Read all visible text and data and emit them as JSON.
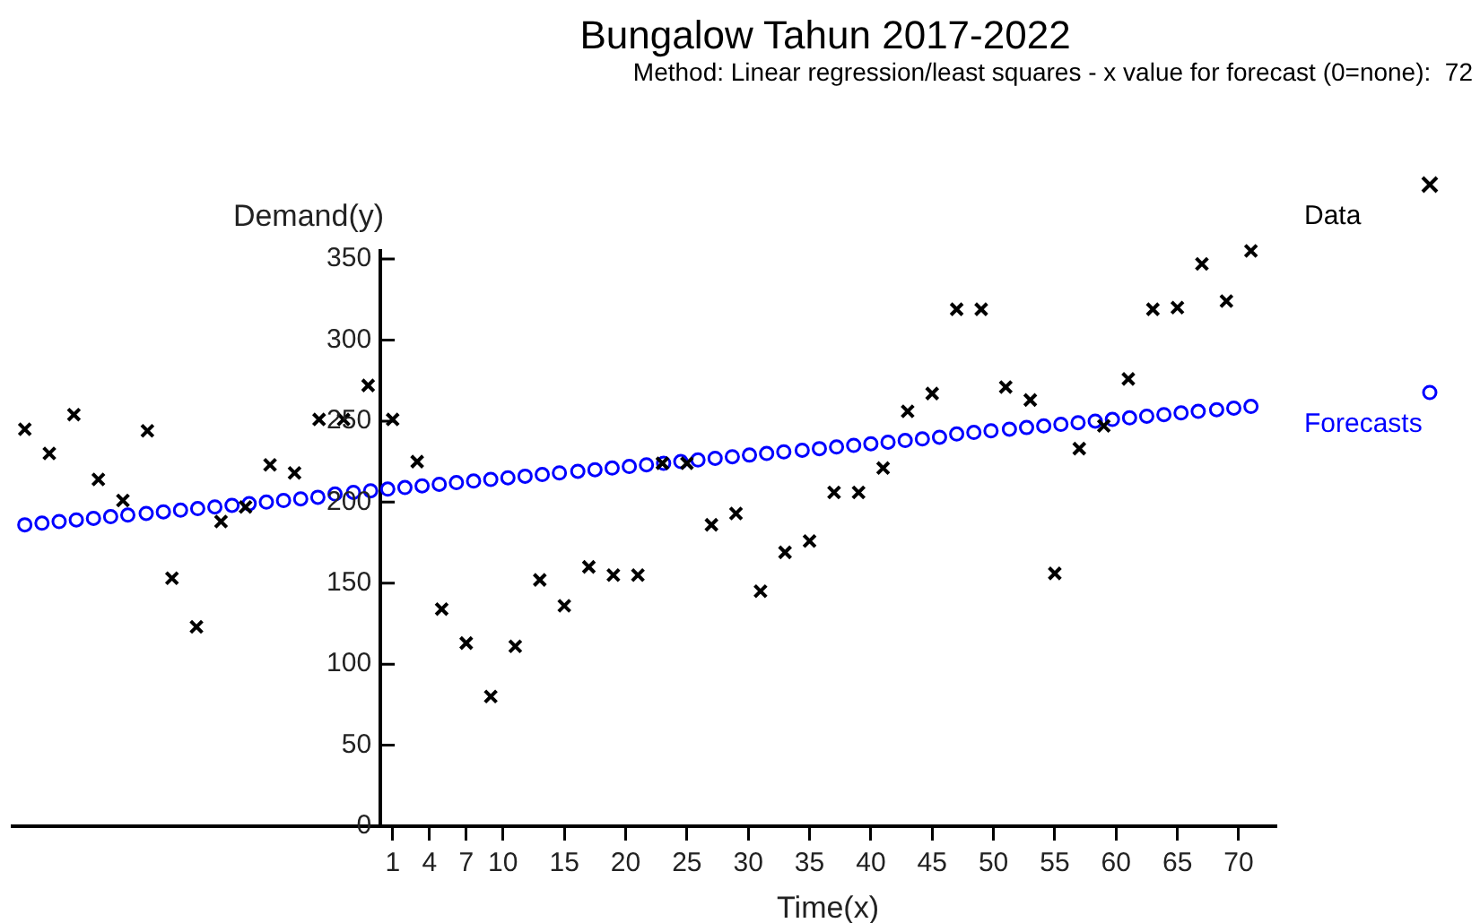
{
  "chart_data": {
    "type": "scatter",
    "title": "Bungalow Tahun 2017-2022",
    "subtitle": "Method: Linear regression/least squares - x value for forecast (0=none):  72",
    "xlabel": "Time(x)",
    "ylabel": "Demand(y)",
    "xlim": [
      -30,
      73
    ],
    "ylim": [
      0,
      355
    ],
    "xticks": [
      1,
      4,
      7,
      10,
      15,
      20,
      25,
      30,
      35,
      40,
      45,
      50,
      55,
      60,
      65,
      70
    ],
    "yticks": [
      0,
      50,
      100,
      150,
      200,
      250,
      300,
      350
    ],
    "grid": false,
    "legend": "top right",
    "series": [
      {
        "name": "Data",
        "color": "#000000",
        "marker": "cross",
        "x": [
          -29,
          -27,
          -25,
          -23,
          -21,
          -19,
          -17,
          -15,
          -13,
          -11,
          -9,
          -7,
          -5,
          -3,
          -1,
          1,
          3,
          5,
          7,
          9,
          11,
          13,
          15,
          17,
          19,
          21,
          23,
          25,
          27,
          29,
          31,
          33,
          35,
          37,
          39,
          41,
          43,
          45,
          47,
          49,
          51,
          53,
          55,
          57,
          59,
          61,
          63,
          65,
          67,
          69,
          71
        ],
        "values": [
          245,
          230,
          254,
          214,
          201,
          244,
          153,
          123,
          188,
          197,
          223,
          218,
          251,
          251,
          272,
          251,
          225,
          134,
          113,
          80,
          111,
          152,
          136,
          160,
          155,
          155,
          224,
          224,
          186,
          193,
          145,
          169,
          176,
          206,
          206,
          221,
          256,
          267,
          319,
          319,
          271,
          263,
          156,
          233,
          247,
          276,
          319,
          320,
          347,
          324,
          355
        ]
      },
      {
        "name": "Forecasts",
        "color": "#0000ff",
        "marker": "circle",
        "x": [
          -29.0,
          -27.6,
          -26.2,
          -24.8,
          -23.4,
          -22.0,
          -20.6,
          -19.1,
          -17.7,
          -16.3,
          -14.9,
          -13.5,
          -12.1,
          -10.7,
          -9.3,
          -7.9,
          -6.5,
          -5.1,
          -3.7,
          -2.2,
          -0.8,
          0.6,
          2.0,
          3.4,
          4.8,
          6.2,
          7.6,
          9.0,
          10.4,
          11.8,
          13.2,
          14.6,
          16.1,
          17.5,
          18.9,
          20.3,
          21.7,
          23.1,
          24.5,
          25.9,
          27.3,
          28.7,
          30.1,
          31.5,
          32.9,
          34.4,
          35.8,
          37.2,
          38.6,
          40.0,
          41.4,
          42.8,
          44.2,
          45.6,
          47.0,
          48.4,
          49.8,
          51.3,
          52.7,
          54.1,
          55.5,
          56.9,
          58.3,
          59.7,
          61.1,
          62.5,
          63.9,
          65.3,
          66.7,
          68.2,
          69.6,
          71.0
        ],
        "values": [
          186,
          187,
          188,
          189,
          190,
          191,
          192,
          193,
          194,
          195,
          196,
          197,
          198,
          199,
          200,
          201,
          202,
          203,
          205,
          206,
          207,
          208,
          209,
          210,
          211,
          212,
          213,
          214,
          215,
          216,
          217,
          218,
          219,
          220,
          221,
          222,
          223,
          224,
          225,
          226,
          227,
          228,
          229,
          230,
          231,
          232,
          233,
          234,
          235,
          236,
          237,
          238,
          239,
          240,
          242,
          243,
          244,
          245,
          246,
          247,
          248,
          249,
          250,
          251,
          252,
          253,
          254,
          255,
          256,
          257,
          258,
          259
        ]
      }
    ]
  }
}
